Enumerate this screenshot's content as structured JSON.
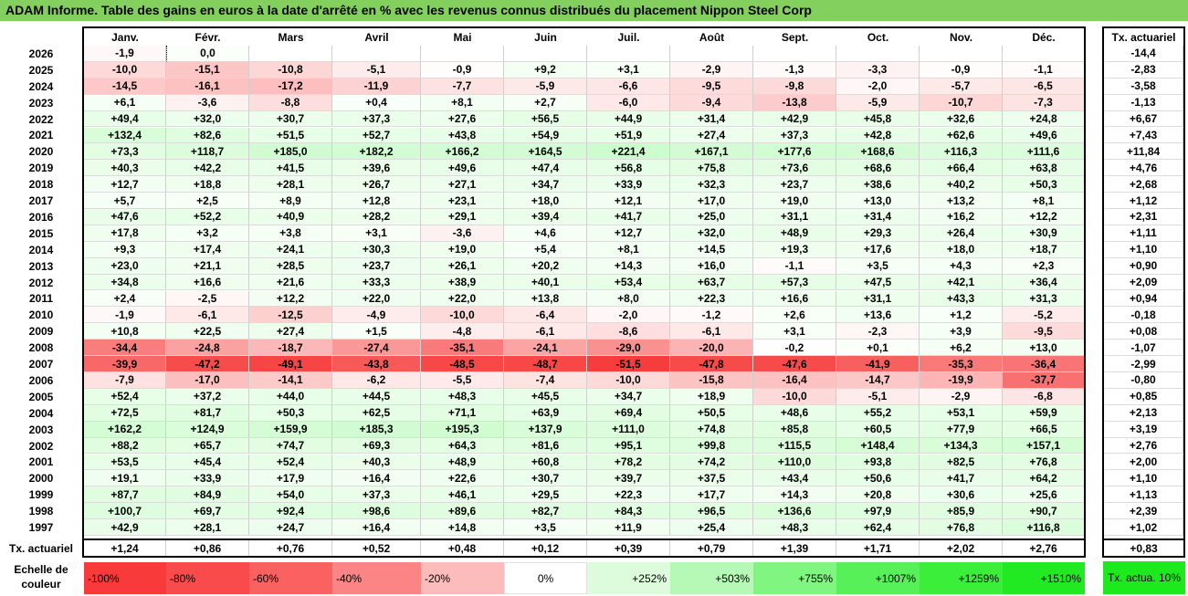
{
  "title": "ADAM Informe. Table des gains en euros à la date d'arrêté en % avec les revenus connus distribués du placement Nippon Steel Corp",
  "right_header": "Tx. actuariel",
  "bottom_label": "Tx. actuariel",
  "legend": {
    "label": "Echelle de couleur",
    "items": [
      {
        "text": "-100%",
        "color": "#f83a3a",
        "align": "left"
      },
      {
        "text": "-80%",
        "color": "#f94b4b",
        "align": "left"
      },
      {
        "text": "-60%",
        "color": "#fa6161",
        "align": "left"
      },
      {
        "text": "-40%",
        "color": "#fb8585",
        "align": "left"
      },
      {
        "text": "-20%",
        "color": "#fdbcbc",
        "align": "left"
      },
      {
        "text": "0%",
        "color": "#ffffff",
        "align": "center"
      },
      {
        "text": "+252%",
        "color": "#dcfcdc",
        "align": "right"
      },
      {
        "text": "+503%",
        "color": "#b6f8b6",
        "align": "right"
      },
      {
        "text": "+755%",
        "color": "#80f580",
        "align": "right"
      },
      {
        "text": "+1007%",
        "color": "#58f058",
        "align": "right"
      },
      {
        "text": "+1259%",
        "color": "#3aee3a",
        "align": "right"
      },
      {
        "text": "+1510%",
        "color": "#22ea22",
        "align": "right"
      }
    ],
    "tx_label": "Tx. actua. 10%",
    "tx_color": "#1dea1d"
  },
  "chart_data": {
    "type": "heatmap",
    "title": "ADAM Informe. Table des gains en euros à la date d'arrêté en % avec les revenus connus distribués du placement Nippon Steel Corp",
    "columns": [
      "Janv.",
      "Févr.",
      "Mars",
      "Avril",
      "Mai",
      "Juin",
      "Juil.",
      "Août",
      "Sept.",
      "Oct.",
      "Nov.",
      "Déc."
    ],
    "rows": [
      {
        "year": "2026",
        "values": [
          "-1,9",
          "0,0",
          "",
          "",
          "",
          "",
          "",
          "",
          "",
          "",
          "",
          ""
        ],
        "tx": "-14,4"
      },
      {
        "year": "2025",
        "values": [
          "-10,0",
          "-15,1",
          "-10,8",
          "-5,1",
          "-0,9",
          "+9,2",
          "+3,1",
          "-2,9",
          "-1,3",
          "-3,3",
          "-0,9",
          "-1,1"
        ],
        "tx": "-2,83"
      },
      {
        "year": "2024",
        "values": [
          "-14,5",
          "-16,1",
          "-17,2",
          "-11,9",
          "-7,7",
          "-5,9",
          "-6,6",
          "-9,5",
          "-9,8",
          "-2,0",
          "-5,7",
          "-6,5"
        ],
        "tx": "-3,58"
      },
      {
        "year": "2023",
        "values": [
          "+6,1",
          "-3,6",
          "-8,8",
          "+0,4",
          "+8,1",
          "+2,7",
          "-6,0",
          "-9,4",
          "-13,8",
          "-5,9",
          "-10,7",
          "-7,3"
        ],
        "tx": "-1,13"
      },
      {
        "year": "2022",
        "values": [
          "+49,4",
          "+32,0",
          "+30,7",
          "+37,3",
          "+27,6",
          "+56,5",
          "+44,9",
          "+31,4",
          "+42,9",
          "+45,8",
          "+32,6",
          "+24,8"
        ],
        "tx": "+6,67"
      },
      {
        "year": "2021",
        "values": [
          "+132,4",
          "+82,6",
          "+51,5",
          "+52,7",
          "+43,8",
          "+54,9",
          "+51,9",
          "+27,4",
          "+37,3",
          "+42,8",
          "+62,6",
          "+49,6"
        ],
        "tx": "+7,43"
      },
      {
        "year": "2020",
        "values": [
          "+73,3",
          "+118,7",
          "+185,0",
          "+182,2",
          "+166,2",
          "+164,5",
          "+221,4",
          "+167,1",
          "+177,6",
          "+168,6",
          "+116,3",
          "+111,6"
        ],
        "tx": "+11,84"
      },
      {
        "year": "2019",
        "values": [
          "+40,3",
          "+42,2",
          "+41,5",
          "+39,6",
          "+49,6",
          "+47,4",
          "+56,8",
          "+75,8",
          "+73,6",
          "+68,6",
          "+66,4",
          "+63,8"
        ],
        "tx": "+4,76"
      },
      {
        "year": "2018",
        "values": [
          "+12,7",
          "+18,8",
          "+28,1",
          "+26,7",
          "+27,1",
          "+34,7",
          "+33,9",
          "+32,3",
          "+23,7",
          "+38,6",
          "+40,2",
          "+50,3"
        ],
        "tx": "+2,68"
      },
      {
        "year": "2017",
        "values": [
          "+5,7",
          "+2,5",
          "+8,9",
          "+12,8",
          "+23,1",
          "+18,0",
          "+12,1",
          "+17,0",
          "+19,0",
          "+13,0",
          "+13,2",
          "+8,1"
        ],
        "tx": "+1,12"
      },
      {
        "year": "2016",
        "values": [
          "+47,6",
          "+52,2",
          "+40,9",
          "+28,2",
          "+29,1",
          "+39,4",
          "+41,7",
          "+25,0",
          "+31,1",
          "+31,4",
          "+16,2",
          "+12,2"
        ],
        "tx": "+2,31"
      },
      {
        "year": "2015",
        "values": [
          "+17,8",
          "+3,2",
          "+3,8",
          "+3,1",
          "-3,6",
          "+4,6",
          "+12,7",
          "+32,0",
          "+48,9",
          "+29,3",
          "+26,4",
          "+30,9"
        ],
        "tx": "+1,11"
      },
      {
        "year": "2014",
        "values": [
          "+9,3",
          "+17,4",
          "+24,1",
          "+30,3",
          "+19,0",
          "+5,4",
          "+8,1",
          "+14,5",
          "+19,3",
          "+17,6",
          "+18,0",
          "+18,7"
        ],
        "tx": "+1,10"
      },
      {
        "year": "2013",
        "values": [
          "+23,0",
          "+21,1",
          "+28,5",
          "+23,7",
          "+26,1",
          "+20,2",
          "+14,3",
          "+16,0",
          "-1,1",
          "+3,5",
          "+4,3",
          "+2,3"
        ],
        "tx": "+0,90"
      },
      {
        "year": "2012",
        "values": [
          "+34,8",
          "+16,6",
          "+21,6",
          "+33,3",
          "+38,9",
          "+40,1",
          "+53,4",
          "+63,7",
          "+57,3",
          "+47,5",
          "+42,1",
          "+36,4"
        ],
        "tx": "+2,09"
      },
      {
        "year": "2011",
        "values": [
          "+2,4",
          "-2,5",
          "+12,2",
          "+22,0",
          "+22,0",
          "+13,8",
          "+8,0",
          "+22,3",
          "+16,6",
          "+31,1",
          "+43,3",
          "+31,3"
        ],
        "tx": "+0,94"
      },
      {
        "year": "2010",
        "values": [
          "-1,9",
          "-6,1",
          "-12,5",
          "-4,9",
          "-10,0",
          "-6,4",
          "-2,0",
          "-1,2",
          "+2,6",
          "+13,6",
          "+1,2",
          "-5,2"
        ],
        "tx": "-0,18"
      },
      {
        "year": "2009",
        "values": [
          "+10,8",
          "+22,5",
          "+27,4",
          "+1,5",
          "-4,8",
          "-6,1",
          "-8,6",
          "-6,1",
          "+3,1",
          "-2,3",
          "+3,9",
          "-9,5"
        ],
        "tx": "+0,08"
      },
      {
        "year": "2008",
        "values": [
          "-34,4",
          "-24,8",
          "-18,7",
          "-27,4",
          "-35,1",
          "-24,1",
          "-29,0",
          "-20,0",
          "-0,2",
          "+0,1",
          "+6,2",
          "+13,0"
        ],
        "tx": "-1,07"
      },
      {
        "year": "2007",
        "values": [
          "-39,9",
          "-47,2",
          "-49,1",
          "-43,8",
          "-48,5",
          "-48,7",
          "-51,5",
          "-47,8",
          "-47,6",
          "-41,9",
          "-35,3",
          "-36,4"
        ],
        "tx": "-2,99"
      },
      {
        "year": "2006",
        "values": [
          "-7,9",
          "-17,0",
          "-14,1",
          "-6,2",
          "-5,5",
          "-7,4",
          "-10,0",
          "-15,8",
          "-16,4",
          "-14,7",
          "-19,9",
          "-37,7"
        ],
        "tx": "-0,80"
      },
      {
        "year": "2005",
        "values": [
          "+52,4",
          "+37,2",
          "+44,0",
          "+44,5",
          "+48,3",
          "+45,5",
          "+34,7",
          "+18,9",
          "-10,0",
          "-5,1",
          "-2,9",
          "-6,8"
        ],
        "tx": "+0,85"
      },
      {
        "year": "2004",
        "values": [
          "+72,5",
          "+81,7",
          "+50,3",
          "+62,5",
          "+71,1",
          "+63,9",
          "+69,4",
          "+50,5",
          "+48,6",
          "+55,2",
          "+53,1",
          "+59,9"
        ],
        "tx": "+2,13"
      },
      {
        "year": "2003",
        "values": [
          "+162,2",
          "+124,9",
          "+159,9",
          "+185,3",
          "+195,3",
          "+137,9",
          "+111,0",
          "+74,8",
          "+85,8",
          "+60,5",
          "+77,9",
          "+66,5"
        ],
        "tx": "+3,19"
      },
      {
        "year": "2002",
        "values": [
          "+88,2",
          "+65,7",
          "+74,7",
          "+69,3",
          "+64,3",
          "+81,6",
          "+95,1",
          "+99,8",
          "+115,5",
          "+148,4",
          "+134,3",
          "+157,1"
        ],
        "tx": "+2,76"
      },
      {
        "year": "2001",
        "values": [
          "+53,5",
          "+45,4",
          "+52,4",
          "+40,3",
          "+48,9",
          "+60,8",
          "+78,2",
          "+74,2",
          "+110,0",
          "+93,8",
          "+82,5",
          "+76,8"
        ],
        "tx": "+2,00"
      },
      {
        "year": "2000",
        "values": [
          "+19,1",
          "+33,9",
          "+17,9",
          "+16,4",
          "+22,6",
          "+30,7",
          "+39,7",
          "+37,5",
          "+43,4",
          "+50,6",
          "+41,7",
          "+64,2"
        ],
        "tx": "+1,10"
      },
      {
        "year": "1999",
        "values": [
          "+87,7",
          "+84,9",
          "+54,0",
          "+37,3",
          "+46,1",
          "+29,5",
          "+22,3",
          "+17,7",
          "+14,3",
          "+20,8",
          "+30,6",
          "+25,6"
        ],
        "tx": "+1,13"
      },
      {
        "year": "1998",
        "values": [
          "+100,7",
          "+69,7",
          "+92,4",
          "+98,6",
          "+89,6",
          "+82,7",
          "+84,3",
          "+96,5",
          "+136,6",
          "+97,9",
          "+85,9",
          "+90,7"
        ],
        "tx": "+2,39"
      },
      {
        "year": "1997",
        "values": [
          "+42,9",
          "+28,1",
          "+24,7",
          "+16,4",
          "+14,8",
          "+3,5",
          "+11,9",
          "+25,4",
          "+48,3",
          "+62,4",
          "+76,8",
          "+116,8"
        ],
        "tx": "+1,02"
      }
    ],
    "column_tx": [
      "+1,24",
      "+0,86",
      "+0,76",
      "+0,52",
      "+0,48",
      "+0,12",
      "+0,39",
      "+0,79",
      "+1,39",
      "+1,71",
      "+2,02",
      "+2,76"
    ],
    "overall_tx": "+0,83"
  }
}
